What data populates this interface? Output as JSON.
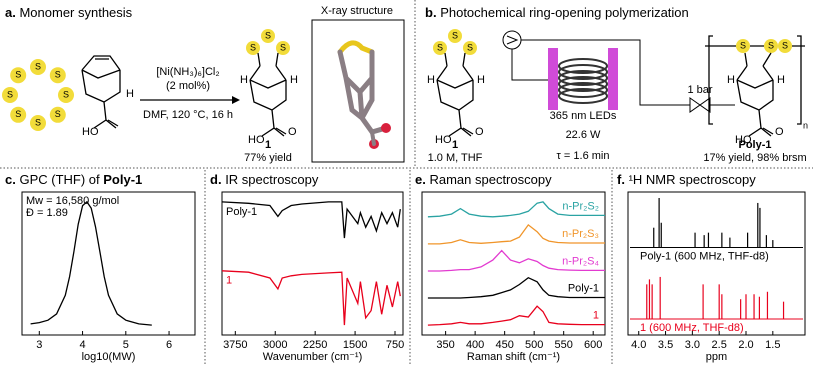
{
  "panel_a": {
    "label": "a.",
    "title": "Monomer synthesis",
    "reagent_1": "[Ni(NH₃)₆]Cl₂",
    "reagent_2": "(2 mol%)",
    "conditions": "DMF, 120 °C, 16 h",
    "xray_title": "X-ray structure",
    "compound": "1",
    "yield": "77% yield",
    "atom_S": "S",
    "atom_H": "H",
    "atom_HO": "HO",
    "atom_O": "O"
  },
  "panel_b": {
    "label": "b.",
    "title": "Photochemical ring-opening polymerization",
    "compound": "1",
    "solution": "1.0 M, THF",
    "leds": "365 nm LEDs",
    "power": "22.6 W",
    "residence": "τ = 1.6 min",
    "pressure": "1 bar",
    "product": "Poly-1",
    "yield": "17% yield, 98% brsm",
    "repeat": "n",
    "atom_S": "S",
    "atom_H": "H",
    "atom_HO": "HO",
    "atom_O": "O"
  },
  "chart_data": [
    {
      "type": "line",
      "label": "c.",
      "title": "GPC (THF) of ",
      "title_emphasis": "Poly-1",
      "annotations": [
        "Mw = 16,580 g/mol",
        "Đ = 1.89"
      ],
      "xlabel": "log10(MW)",
      "xlim": [
        2.6,
        6.6
      ],
      "xticks": [
        3,
        4,
        5,
        6
      ],
      "color": "#000000",
      "x": [
        2.8,
        3.0,
        3.2,
        3.4,
        3.6,
        3.7,
        3.8,
        3.9,
        4.0,
        4.1,
        4.2,
        4.3,
        4.4,
        4.5,
        4.6,
        4.8,
        5.0,
        5.3,
        5.6
      ],
      "values": [
        0.02,
        0.03,
        0.05,
        0.1,
        0.25,
        0.4,
        0.6,
        0.82,
        0.97,
        1.0,
        0.95,
        0.8,
        0.6,
        0.4,
        0.25,
        0.1,
        0.05,
        0.02,
        0.01
      ]
    },
    {
      "type": "line",
      "label": "d.",
      "title": "IR spectroscopy",
      "xlabel": "Wavenumber (cm⁻¹)",
      "xlim": [
        4000,
        600
      ],
      "xticks": [
        3750,
        3000,
        2250,
        1500,
        750
      ],
      "legend": "left",
      "x": [
        4000,
        3500,
        3100,
        2950,
        2870,
        2700,
        2500,
        2000,
        1750,
        1700,
        1650,
        1450,
        1400,
        1300,
        1200,
        1100,
        1000,
        900,
        800,
        700,
        650
      ],
      "series": [
        {
          "name": "Poly-1",
          "color": "#000000",
          "values": [
            1.9,
            1.88,
            1.85,
            1.7,
            1.78,
            1.85,
            1.87,
            1.9,
            1.9,
            1.4,
            1.8,
            1.6,
            1.75,
            1.55,
            1.7,
            1.5,
            1.75,
            1.6,
            1.75,
            1.55,
            1.8
          ]
        },
        {
          "name": "1",
          "color": "#e8001c",
          "values": [
            0.95,
            0.93,
            0.85,
            0.7,
            0.85,
            0.88,
            0.9,
            0.92,
            0.93,
            0.2,
            0.85,
            0.5,
            0.8,
            0.3,
            0.4,
            0.8,
            0.35,
            0.75,
            0.45,
            0.8,
            0.6
          ]
        }
      ]
    },
    {
      "type": "line",
      "label": "e.",
      "title": "Raman spectroscopy",
      "xlabel": "Raman shift (cm⁻¹)",
      "xlim": [
        310,
        620
      ],
      "xticks": [
        350,
        400,
        450,
        500,
        550,
        600
      ],
      "legend": "right",
      "x": [
        320,
        340,
        360,
        375,
        390,
        410,
        430,
        445,
        460,
        475,
        490,
        505,
        515,
        525,
        540,
        560,
        580,
        600,
        620
      ],
      "series": [
        {
          "name": "n-Pr₂S₂",
          "color": "#2aa3a3",
          "values": [
            4.0,
            4.02,
            4.1,
            4.3,
            4.1,
            4.02,
            4.0,
            4.02,
            4.05,
            4.1,
            4.2,
            4.5,
            4.55,
            4.3,
            4.1,
            4.05,
            4.05,
            4.05,
            4.05
          ]
        },
        {
          "name": "n-Pr₂S₃",
          "color": "#f0952a",
          "values": [
            3.0,
            3.0,
            3.05,
            3.15,
            3.05,
            3.02,
            3.05,
            3.08,
            3.1,
            3.25,
            3.7,
            3.45,
            3.2,
            3.1,
            3.05,
            3.03,
            3.03,
            3.03,
            3.03
          ]
        },
        {
          "name": "n-Pr₂S₄",
          "color": "#e23ad0",
          "values": [
            2.0,
            2.0,
            2.02,
            2.05,
            2.05,
            2.15,
            2.4,
            2.75,
            2.4,
            2.3,
            2.45,
            2.35,
            2.2,
            2.1,
            2.05,
            2.03,
            2.02,
            2.02,
            2.02
          ]
        },
        {
          "name": "Poly-1",
          "color": "#000000",
          "values": [
            1.0,
            1.0,
            1.0,
            1.0,
            1.02,
            1.05,
            1.1,
            1.2,
            1.3,
            1.5,
            1.75,
            1.6,
            1.3,
            1.1,
            1.05,
            1.02,
            1.02,
            1.02,
            1.02
          ]
        },
        {
          "name": "1",
          "color": "#e8001c",
          "values": [
            0.0,
            0.02,
            0.05,
            0.1,
            0.05,
            0.05,
            0.1,
            0.15,
            0.2,
            0.35,
            0.3,
            0.7,
            0.5,
            0.1,
            0.05,
            0.03,
            0.02,
            0.02,
            0.02
          ]
        }
      ]
    },
    {
      "type": "stick",
      "label": "f.",
      "title": "¹H NMR spectroscopy",
      "xlabel": "ppm",
      "xlim": [
        4.2,
        0.9
      ],
      "xticks": [
        {
          "value": 4,
          "label": "4.0"
        },
        3.5,
        {
          "value": 3,
          "label": "3.0"
        },
        2.5,
        {
          "value": 2,
          "label": "2.0"
        },
        1.5
      ],
      "legend": "below",
      "series": [
        {
          "name": "Poly-1 (600 MHz, THF-d8)",
          "color": "#000000",
          "x": [
            3.72,
            3.62,
            3.58,
            2.95,
            2.78,
            2.7,
            2.45,
            2.3,
            1.97,
            1.78,
            1.74,
            1.62,
            1.5
          ],
          "values": [
            0.4,
            1.0,
            0.5,
            0.3,
            0.25,
            0.3,
            0.3,
            0.2,
            0.3,
            0.9,
            0.8,
            0.25,
            0.15
          ]
        },
        {
          "name": "1 (600 MHz, THF-d8)",
          "color": "#e8001c",
          "x": [
            3.85,
            3.8,
            3.75,
            3.6,
            2.8,
            2.5,
            2.45,
            2.1,
            2.0,
            1.85,
            1.75,
            1.6,
            1.3
          ],
          "values": [
            0.7,
            0.8,
            0.7,
            0.85,
            0.7,
            0.7,
            0.5,
            0.4,
            0.5,
            0.5,
            0.45,
            0.55,
            0.35
          ]
        }
      ]
    }
  ]
}
